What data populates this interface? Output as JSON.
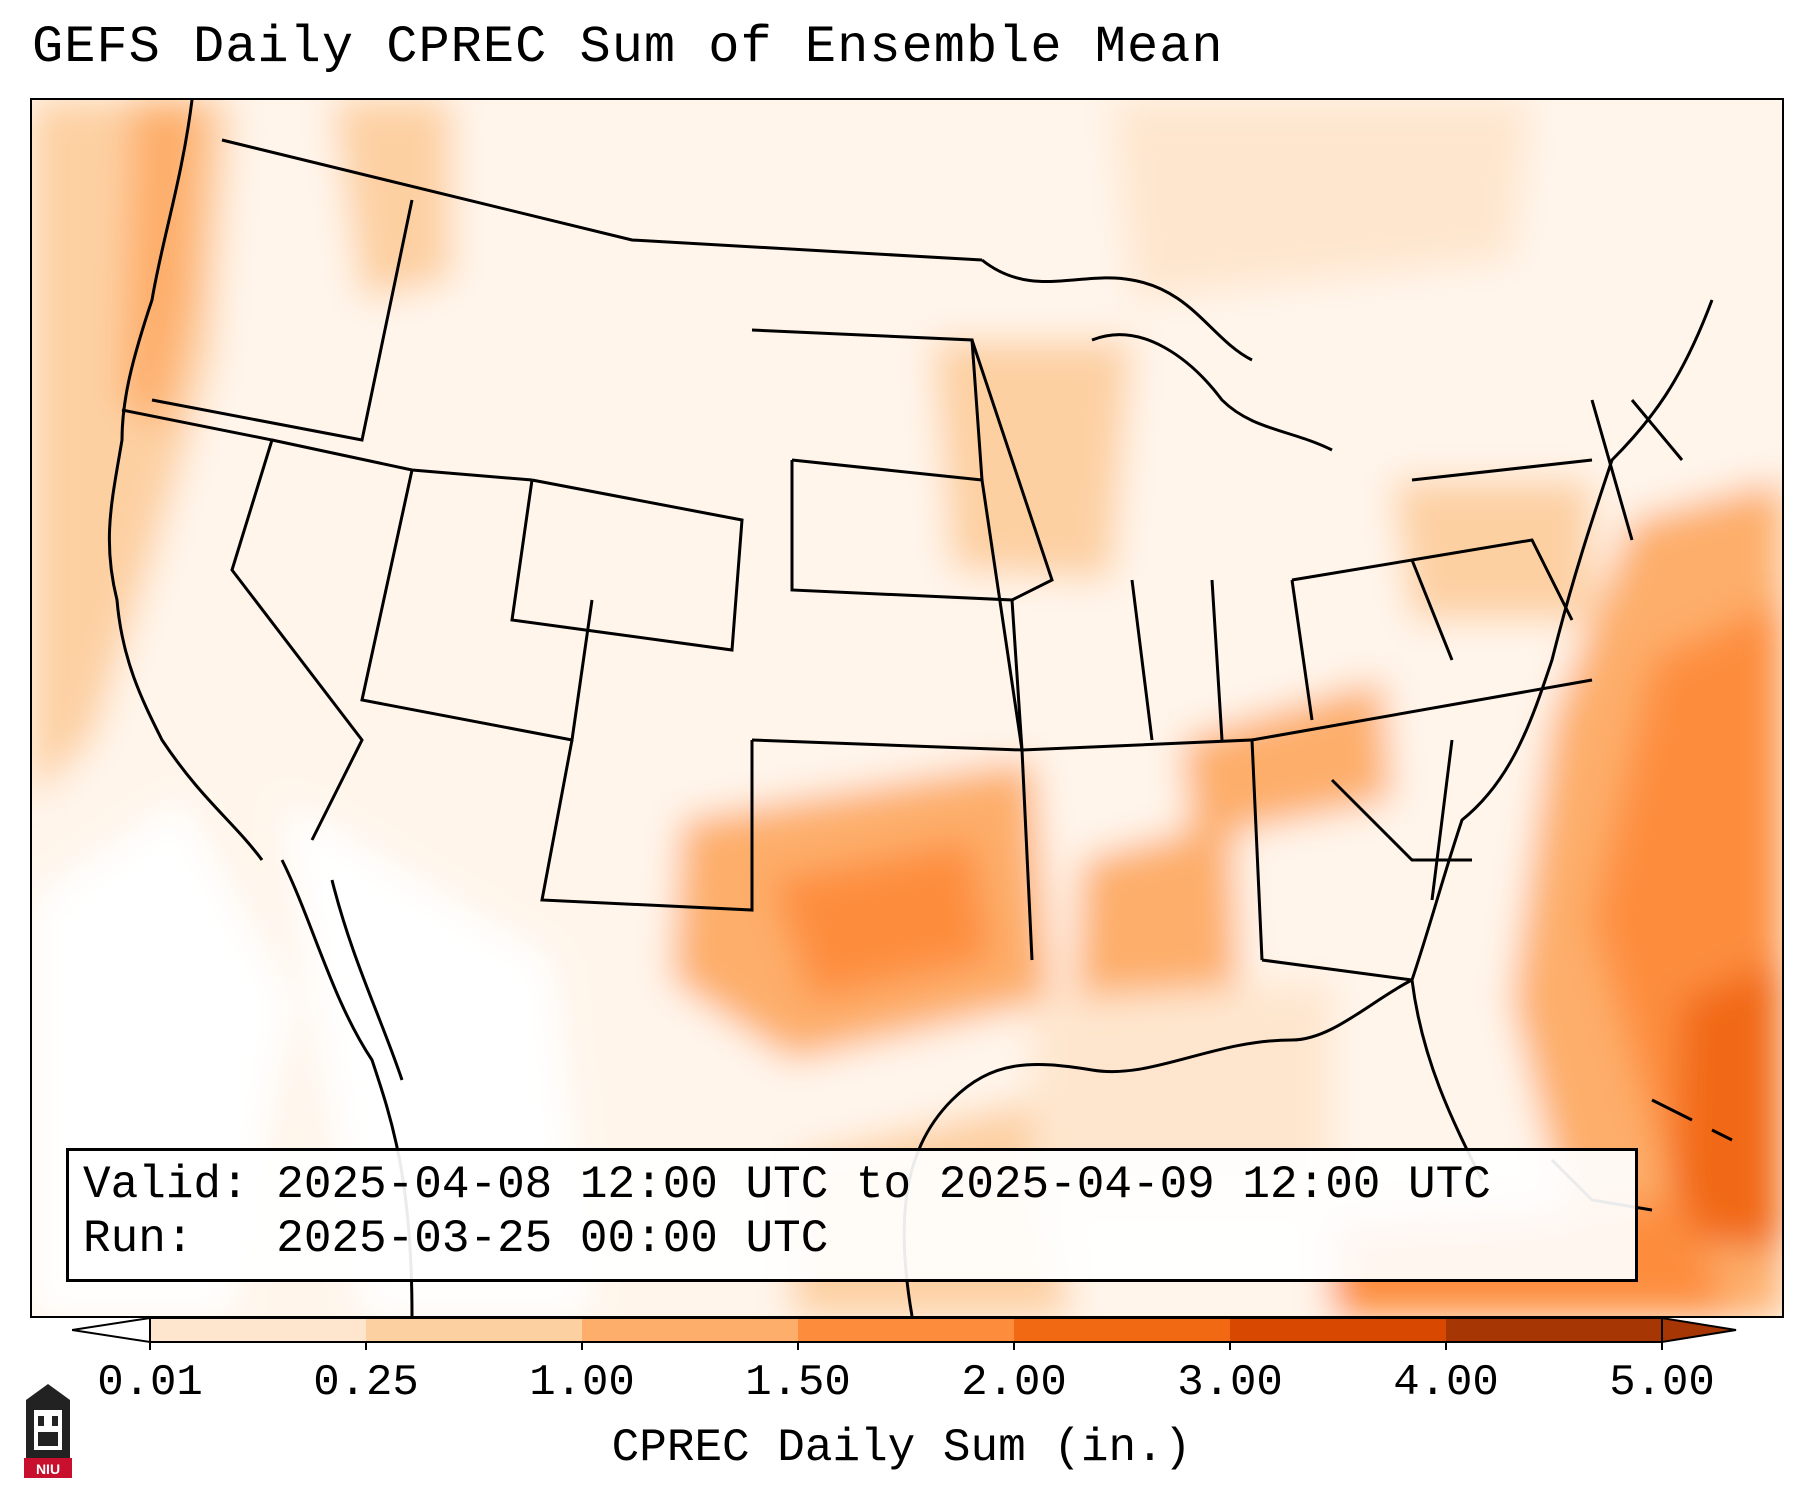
{
  "title": "GEFS Daily CPREC Sum of Ensemble Mean",
  "info": {
    "valid_line": "Valid: 2025-04-08 12:00 UTC to 2025-04-09 12:00 UTC",
    "run_line": "Run:   2025-03-25 00:00 UTC"
  },
  "colorbar": {
    "label": "CPREC Daily Sum (in.)",
    "ticks": [
      "0.01",
      "0.25",
      "1.00",
      "1.50",
      "2.00",
      "3.00",
      "4.00",
      "5.00"
    ],
    "colors": [
      "#ffffff",
      "#fee6ce",
      "#fdd0a2",
      "#fdae6b",
      "#fd8d3c",
      "#f16913",
      "#d94801",
      "#a63603"
    ]
  },
  "logo": {
    "text": "NIU",
    "icon": "university-logo-icon"
  }
}
